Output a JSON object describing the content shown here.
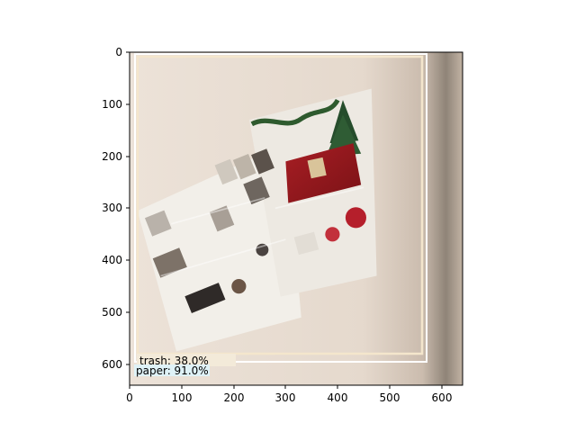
{
  "axes": {
    "x_ticks": [
      "0",
      "100",
      "200",
      "300",
      "400",
      "500",
      "600"
    ],
    "y_ticks": [
      "0",
      "100",
      "200",
      "300",
      "400",
      "500",
      "600"
    ],
    "xlim": [
      0,
      640
    ],
    "ylim": [
      640,
      0
    ]
  },
  "detections": [
    {
      "label": "trash: 38.0%",
      "box_color": "#f4e6cc",
      "label_bg": "#f3ead9"
    },
    {
      "label": "paper: 91.0%",
      "box_color": "#ffffff",
      "label_bg": "#dff2f7"
    }
  ],
  "colors": {
    "frame": "#000000",
    "wall_left": "#ebe0d5",
    "wall_right": "#bcaea0"
  },
  "image_content": "crumpled retail advertising flyer with holiday table and household products"
}
